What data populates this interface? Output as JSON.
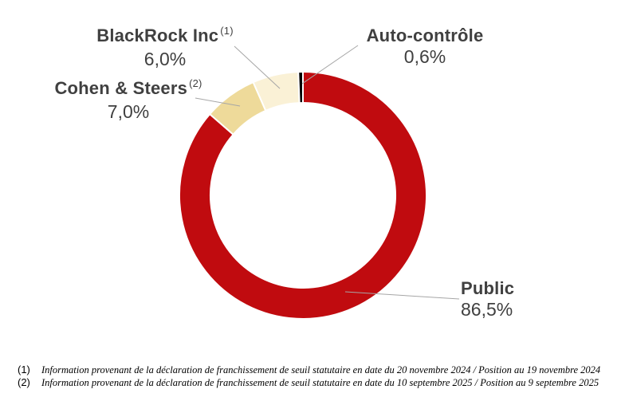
{
  "chart_data": {
    "type": "pie",
    "subtype": "donut",
    "title": "",
    "start_angle_deg": 0,
    "direction": "clockwise",
    "hole_ratio": 0.75,
    "legend": "none",
    "segments": [
      {
        "label": "Public",
        "value_pct": 86.5,
        "display_pct": "86,5%",
        "color": "#C00B0F"
      },
      {
        "label": "Cohen & Steers",
        "value_pct": 7.0,
        "display_pct": "7,0%",
        "color": "#EEDA9A",
        "sup": "(2)"
      },
      {
        "label": "BlackRock Inc",
        "value_pct": 6.0,
        "display_pct": "6,0%",
        "color": "#FAF1D6",
        "sup": "(1)"
      },
      {
        "label": "Auto-contrôle",
        "value_pct": 0.6,
        "display_pct": "0,6%",
        "color": "#000000"
      }
    ]
  },
  "footnotes": [
    {
      "marker": "(1)",
      "text": "Information provenant de la déclaration de franchissement de seuil statutaire en date du 20 novembre 2024 / Position au 19 novembre 2024"
    },
    {
      "marker": "(2)",
      "text": "Information provenant de la déclaration de franchissement de seuil statutaire en date du 10 septembre 2025 / Position au 9 septembre 2025"
    }
  ],
  "styles": {
    "label_color": "#404040",
    "leader_line_color": "#A6A6A6",
    "segment_border_color": "#FFFFFF",
    "background": "#FFFFFF"
  }
}
